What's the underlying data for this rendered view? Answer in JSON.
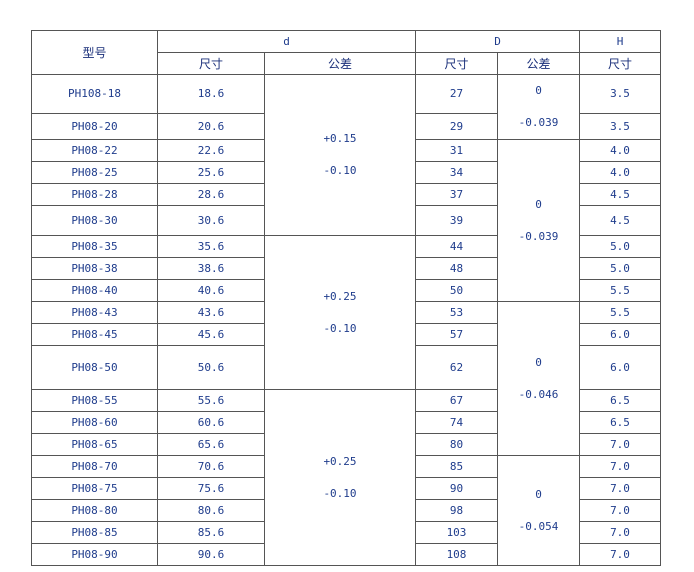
{
  "header": {
    "model": "型号",
    "d": "d",
    "D": "D",
    "H": "H",
    "size": "尺寸",
    "tolerance": "公差"
  },
  "rows": [
    {
      "model": "PH108-18",
      "d": "18.6",
      "D": "27",
      "H": "3.5"
    },
    {
      "model": "PH08-20",
      "d": "20.6",
      "D": "29",
      "H": "3.5"
    },
    {
      "model": "PH08-22",
      "d": "22.6",
      "D": "31",
      "H": "4.0"
    },
    {
      "model": "PH08-25",
      "d": "25.6",
      "D": "34",
      "H": "4.0"
    },
    {
      "model": "PH08-28",
      "d": "28.6",
      "D": "37",
      "H": "4.5"
    },
    {
      "model": "PH08-30",
      "d": "30.6",
      "D": "39",
      "H": "4.5"
    },
    {
      "model": "PH08-35",
      "d": "35.6",
      "D": "44",
      "H": "5.0"
    },
    {
      "model": "PH08-38",
      "d": "38.6",
      "D": "48",
      "H": "5.0"
    },
    {
      "model": "PH08-40",
      "d": "40.6",
      "D": "50",
      "H": "5.5"
    },
    {
      "model": "PH08-43",
      "d": "43.6",
      "D": "53",
      "H": "5.5"
    },
    {
      "model": "PH08-45",
      "d": "45.6",
      "D": "57",
      "H": "6.0"
    },
    {
      "model": "PH08-50",
      "d": "50.6",
      "D": "62",
      "H": "6.0"
    },
    {
      "model": "PH08-55",
      "d": "55.6",
      "D": "67",
      "H": "6.5"
    },
    {
      "model": "PH08-60",
      "d": "60.6",
      "D": "74",
      "H": "6.5"
    },
    {
      "model": "PH08-65",
      "d": "65.6",
      "D": "80",
      "H": "7.0"
    },
    {
      "model": "PH08-70",
      "d": "70.6",
      "D": "85",
      "H": "7.0"
    },
    {
      "model": "PH08-75",
      "d": "75.6",
      "D": "90",
      "H": "7.0"
    },
    {
      "model": "PH08-80",
      "d": "80.6",
      "D": "98",
      "H": "7.0"
    },
    {
      "model": "PH08-85",
      "d": "85.6",
      "D": "103",
      "H": "7.0"
    },
    {
      "model": "PH08-90",
      "d": "90.6",
      "D": "108",
      "H": "7.0"
    }
  ],
  "d_tolerance": [
    {
      "start": 0,
      "span": 6,
      "upper": "+0.15",
      "lower": "-0.10"
    },
    {
      "start": 6,
      "span": 6,
      "upper": "+0.25",
      "lower": "-0.10"
    },
    {
      "start": 12,
      "span": 8,
      "upper": "+0.25",
      "lower": "-0.10"
    }
  ],
  "D_tolerance": [
    {
      "start": 0,
      "span": 2,
      "upper": "0",
      "lower": "-0.039"
    },
    {
      "start": 2,
      "span": 7,
      "upper": "0",
      "lower": "-0.039"
    },
    {
      "start": 9,
      "span": 6,
      "upper": "0",
      "lower": "-0.046"
    },
    {
      "start": 15,
      "span": 5,
      "upper": "0",
      "lower": "-0.054"
    }
  ]
}
